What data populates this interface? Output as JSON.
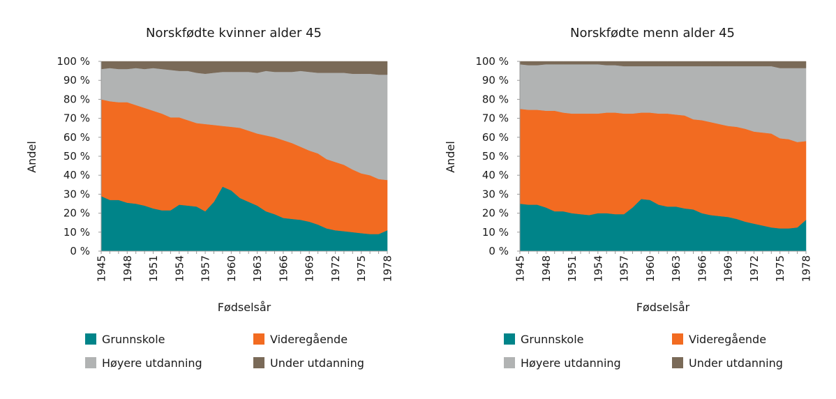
{
  "chart_data": [
    {
      "type": "area",
      "stacked": true,
      "title": "Norskfødte kvinner alder 45",
      "xlabel": "Fødselsår",
      "ylabel": "Andel",
      "ylim": [
        0,
        100
      ],
      "yticks": [
        "0 %",
        "10 %",
        "20 %",
        "30 %",
        "40 %",
        "50 %",
        "60 %",
        "70 %",
        "80 %",
        "90 %",
        "100 %"
      ],
      "xticks": [
        "1945",
        "1948",
        "1951",
        "1954",
        "1957",
        "1960",
        "1963",
        "1966",
        "1969",
        "1972",
        "1975",
        "1978"
      ],
      "legend_position": "bottom",
      "x": [
        1945,
        1946,
        1947,
        1948,
        1949,
        1950,
        1951,
        1952,
        1953,
        1954,
        1955,
        1956,
        1957,
        1958,
        1959,
        1960,
        1961,
        1962,
        1963,
        1964,
        1965,
        1966,
        1967,
        1968,
        1969,
        1970,
        1971,
        1972,
        1973,
        1974,
        1975,
        1976,
        1977,
        1978
      ],
      "series": [
        {
          "name": "Grunnskole",
          "color": "#008489",
          "values": [
            29,
            27,
            27,
            25.5,
            25,
            24,
            22.5,
            21.5,
            21.5,
            24.5,
            24,
            23.5,
            21,
            26,
            34,
            32,
            28,
            26,
            24,
            21,
            19.5,
            17.5,
            17,
            16.5,
            15.5,
            14,
            12,
            11,
            10.5,
            10,
            9.5,
            9,
            9,
            11
          ]
        },
        {
          "name": "Videregående",
          "color": "#F26B21",
          "values": [
            51,
            52,
            51.5,
            53,
            52,
            51.5,
            51.5,
            51,
            49,
            46,
            45,
            44,
            46,
            40.5,
            32,
            33.5,
            37,
            37.5,
            38,
            40,
            40.5,
            41,
            40,
            38.5,
            37.5,
            37.5,
            36.5,
            36,
            35,
            33,
            31.5,
            31,
            29,
            26.5
          ]
        },
        {
          "name": "Høyere utdanning",
          "color": "#B1B3B3",
          "values": [
            16,
            17.5,
            17.5,
            17.5,
            19.5,
            20.5,
            22.5,
            23.5,
            25,
            24.5,
            26,
            26.5,
            26.5,
            27.5,
            28.5,
            29,
            29.5,
            31,
            32,
            34,
            34.5,
            36,
            37.5,
            40,
            41.5,
            42.5,
            45.5,
            47,
            48.5,
            50.5,
            52.5,
            53.5,
            55,
            55.5
          ]
        },
        {
          "name": "Under utdanning",
          "color": "#7A6A58",
          "values": [
            4,
            3.5,
            4,
            4,
            3.5,
            4,
            3.5,
            4,
            4.5,
            5,
            5,
            6,
            6.5,
            6,
            5.5,
            5.5,
            5.5,
            5.5,
            6,
            5,
            5.5,
            5.5,
            5.5,
            5,
            5.5,
            6,
            6,
            6,
            6,
            6.5,
            6.5,
            6.5,
            7,
            7
          ]
        }
      ]
    },
    {
      "type": "area",
      "stacked": true,
      "title": "Norskfødte menn alder 45",
      "xlabel": "Fødselsår",
      "ylabel": "Andel",
      "ylim": [
        0,
        100
      ],
      "yticks": [
        "0 %",
        "10 %",
        "20 %",
        "30 %",
        "40 %",
        "50 %",
        "60 %",
        "70 %",
        "80 %",
        "90 %",
        "100 %"
      ],
      "xticks": [
        "1945",
        "1948",
        "1951",
        "1954",
        "1957",
        "1960",
        "1963",
        "1966",
        "1969",
        "1972",
        "1975",
        "1978"
      ],
      "legend_position": "bottom",
      "x": [
        1945,
        1946,
        1947,
        1948,
        1949,
        1950,
        1951,
        1952,
        1953,
        1954,
        1955,
        1956,
        1957,
        1958,
        1959,
        1960,
        1961,
        1962,
        1963,
        1964,
        1965,
        1966,
        1967,
        1968,
        1969,
        1970,
        1971,
        1972,
        1973,
        1974,
        1975,
        1976,
        1977,
        1978
      ],
      "series": [
        {
          "name": "Grunnskole",
          "color": "#008489",
          "values": [
            25,
            24.5,
            24.5,
            23,
            21,
            21,
            20,
            19.5,
            19,
            20,
            20,
            19.5,
            19.5,
            23,
            27.5,
            27,
            24.5,
            23.5,
            23.5,
            22.5,
            22,
            20,
            19,
            18.5,
            18,
            17,
            15.5,
            14.5,
            13.5,
            12.5,
            12,
            12,
            12.5,
            16.5
          ]
        },
        {
          "name": "Videregående",
          "color": "#F26B21",
          "values": [
            50,
            50,
            50,
            51,
            53,
            52,
            52.5,
            53,
            53.5,
            52.5,
            53,
            53.5,
            53,
            49.5,
            45.5,
            46,
            48,
            49,
            48.5,
            49,
            47.5,
            49,
            49,
            48.5,
            48,
            48.5,
            49,
            48.5,
            49,
            49.5,
            47.5,
            47,
            45,
            41.5
          ]
        },
        {
          "name": "Høyere utdanning",
          "color": "#B1B3B3",
          "values": [
            23.5,
            23.5,
            23.5,
            24.5,
            24.5,
            25.5,
            26,
            26,
            26,
            26,
            25,
            25,
            25,
            25,
            24.5,
            24.5,
            25,
            25,
            25.5,
            26,
            28,
            28.5,
            29.5,
            30.5,
            31.5,
            32,
            33,
            34.5,
            35,
            35.5,
            37,
            37.5,
            39,
            38.5
          ]
        },
        {
          "name": "Under utdanning",
          "color": "#7A6A58",
          "values": [
            1.5,
            2,
            2,
            1.5,
            1.5,
            1.5,
            1.5,
            1.5,
            1.5,
            1.5,
            2,
            2,
            2.5,
            2.5,
            2.5,
            2.5,
            2.5,
            2.5,
            2.5,
            2.5,
            2.5,
            2.5,
            2.5,
            2.5,
            2.5,
            2.5,
            2.5,
            2.5,
            2.5,
            2.5,
            3.5,
            3.5,
            3.5,
            3.5
          ]
        }
      ]
    }
  ]
}
